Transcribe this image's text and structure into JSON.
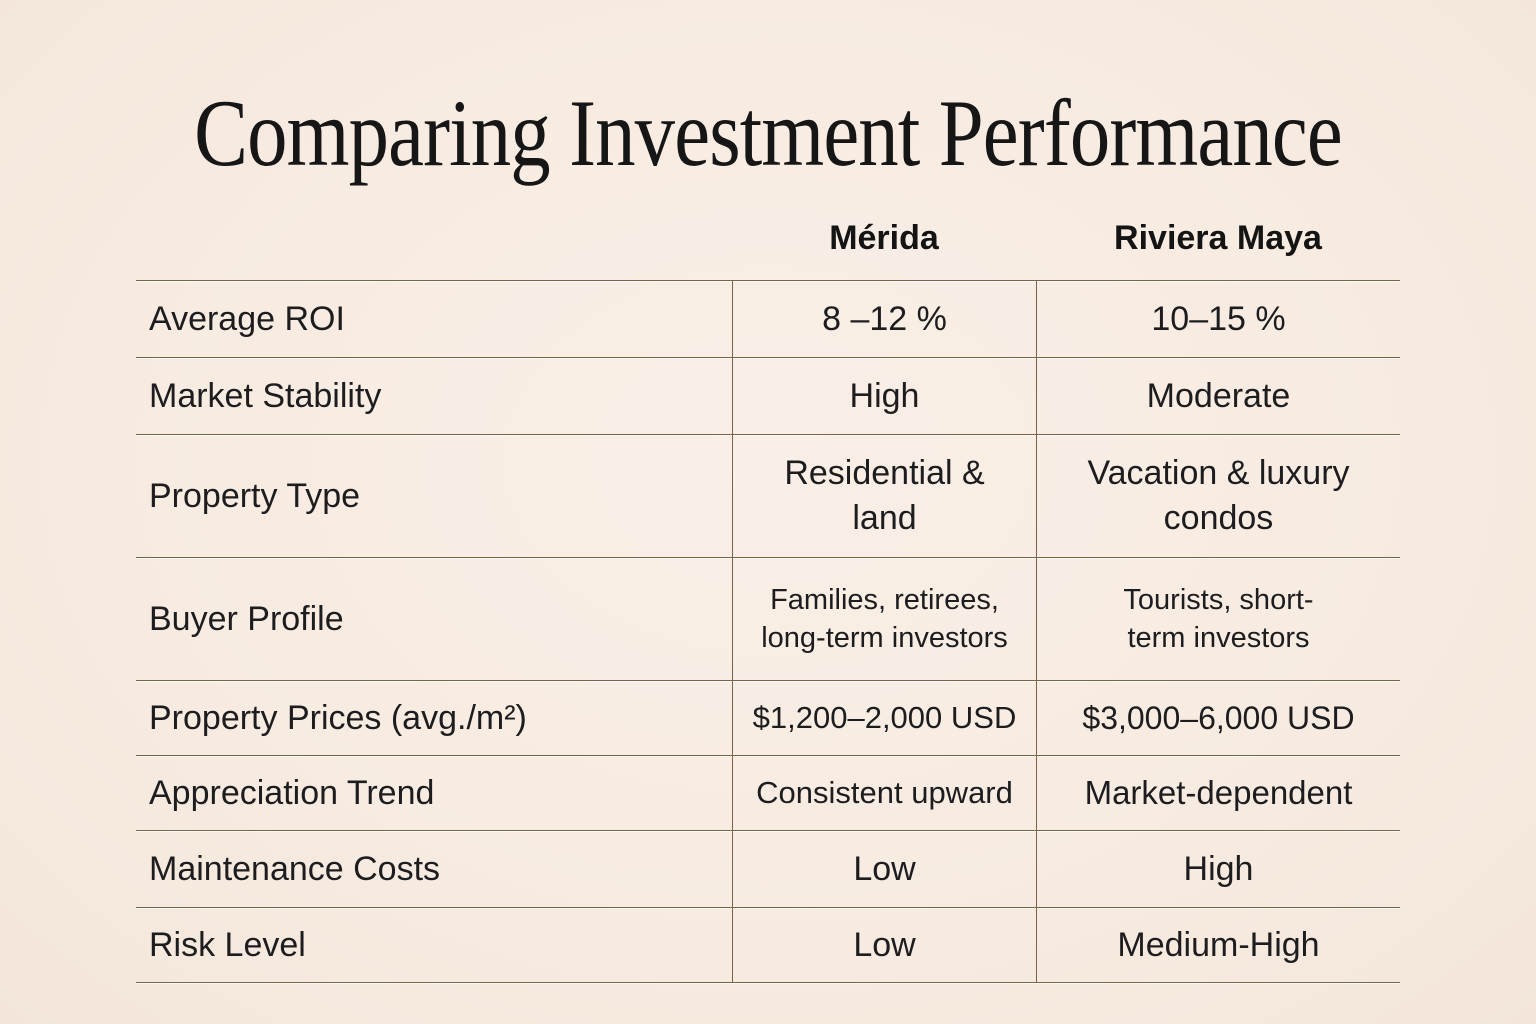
{
  "title": "Comparing Investment Performance",
  "style": {
    "background_color": "#f7ebe1",
    "line_color": "#7c6347",
    "text_color": "#1d1d1f"
  },
  "table": {
    "columns": [
      "Mérida",
      "Riviera Maya"
    ],
    "rows": [
      {
        "label": "Average ROI",
        "merida": "8 –12 %",
        "riviera": "10–15 %"
      },
      {
        "label": "Market Stability",
        "merida": "High",
        "riviera": "Moderate"
      },
      {
        "label": "Property Type",
        "merida": "Residential &\nland",
        "riviera": "Vacation & luxury\ncondos"
      },
      {
        "label": "Buyer Profile",
        "merida": "Families, retirees,\nlong-term investors",
        "riviera": "Tourists, short-\nterm investors"
      },
      {
        "label": "Property Prices (avg./m²)",
        "merida": "$1,200–2,000 USD",
        "riviera": "$3,000–6,000 USD"
      },
      {
        "label": "Appreciation Trend",
        "merida": "Consistent upward",
        "riviera": "Market-dependent"
      },
      {
        "label": "Maintenance Costs",
        "merida": "Low",
        "riviera": "High"
      },
      {
        "label": "Risk Level",
        "merida": "Low",
        "riviera": "Medium-High"
      }
    ]
  }
}
